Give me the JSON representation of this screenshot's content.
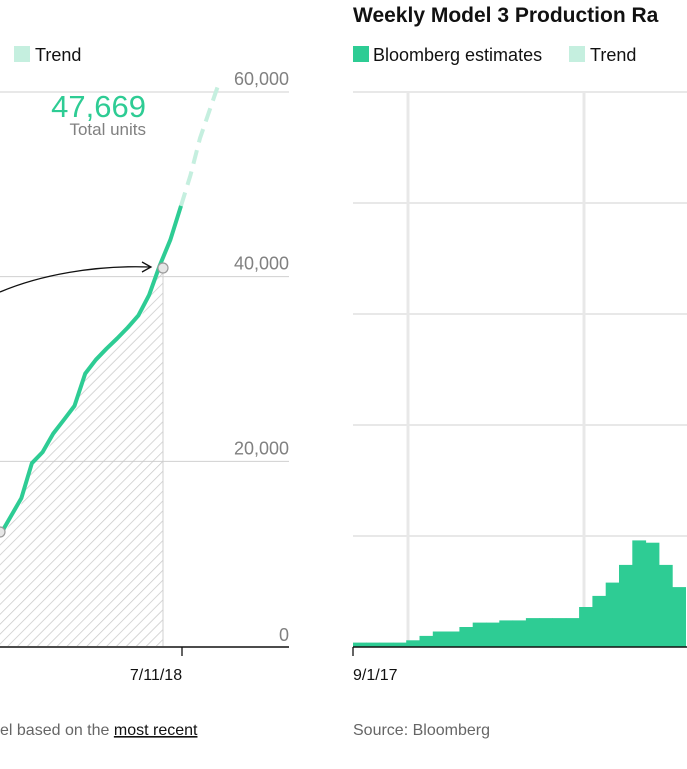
{
  "left_panel": {
    "legend": {
      "trend_label": "Trend",
      "trend_color": "#c5efdf"
    },
    "callout": {
      "value": "47,669",
      "label": "Total units"
    },
    "y_ticks": [
      "60,000",
      "40,000",
      "20,000",
      "0"
    ],
    "x_ticks": [
      "7/11/18"
    ],
    "footnote": {
      "text": "el based on the ",
      "link": "most recent"
    }
  },
  "right_panel": {
    "title": "Weekly Model 3 Production Ra",
    "legend": {
      "estimates_label": "Bloomberg estimates",
      "estimates_color": "#2ecc94",
      "trend_label": "Trend",
      "trend_color": "#c5efdf"
    },
    "x_ticks": [
      "9/1/17"
    ],
    "source": "Source: Bloomberg"
  },
  "colors": {
    "accent": "#2ecc94",
    "trend": "#c5efdf",
    "grid": "#d0d0d0",
    "muted": "#808080",
    "text": "#111111"
  },
  "chart_data": [
    {
      "type": "line",
      "ylim": [
        0,
        60000
      ],
      "x_ticks": [
        "7/11/18"
      ],
      "y_ticks": [
        0,
        20000,
        40000,
        60000
      ],
      "annotation": "47,669 Total units",
      "series": [
        {
          "name": "",
          "y": [
            12000,
            14000,
            16000,
            19800,
            21000,
            23000,
            24500,
            26000,
            29500,
            31000,
            32200,
            33300,
            34500,
            35800,
            38000,
            41200,
            44000,
            47669
          ]
        },
        {
          "name": "Trend",
          "y": [
            47669,
            51000,
            55000,
            58000,
            61000
          ]
        }
      ]
    },
    {
      "type": "bar",
      "title": "Weekly Model 3 Production Ra",
      "x_ticks": [
        "9/1/17"
      ],
      "series": [
        {
          "name": "Bloomberg estimates",
          "values": [
            2,
            2,
            2,
            2,
            3,
            5,
            7,
            7,
            9,
            11,
            11,
            12,
            12,
            13,
            13,
            13,
            13,
            18,
            23,
            29,
            37,
            48,
            47,
            37,
            27
          ]
        }
      ]
    }
  ]
}
